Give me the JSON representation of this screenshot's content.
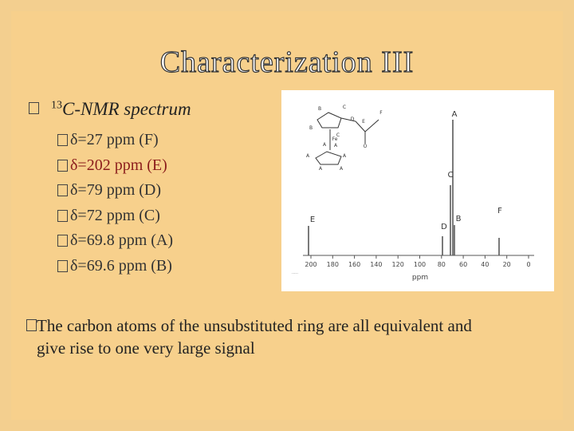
{
  "header": {
    "title": "Characterization III"
  },
  "body": {
    "heading": {
      "sup": "13",
      "text": "C-NMR spectrum"
    },
    "shifts": [
      "δ=27 ppm (F)",
      "δ=202 ppm (E)",
      "δ=79 ppm (D)",
      "δ=72 ppm (C)",
      "δ=69.8 ppm (A)",
      "δ=69.6 ppm (B)"
    ],
    "note": "The carbon atoms of the unsubstituted ring are all equivalent and give rise to one very large signal"
  },
  "spectrum": {
    "peak_labels": [
      "A",
      "C",
      "E",
      "D",
      "B",
      "F"
    ],
    "ticks": [
      "200",
      "180",
      "160",
      "140",
      "120",
      "100",
      "80",
      "60",
      "40",
      "20",
      "0"
    ],
    "axis_label": "ppm",
    "molecule_labels": [
      "B",
      "C",
      "D",
      "E",
      "F",
      "B",
      "C",
      "A",
      "Fe",
      "O",
      "A",
      "A",
      "A",
      "A",
      "A"
    ]
  }
}
